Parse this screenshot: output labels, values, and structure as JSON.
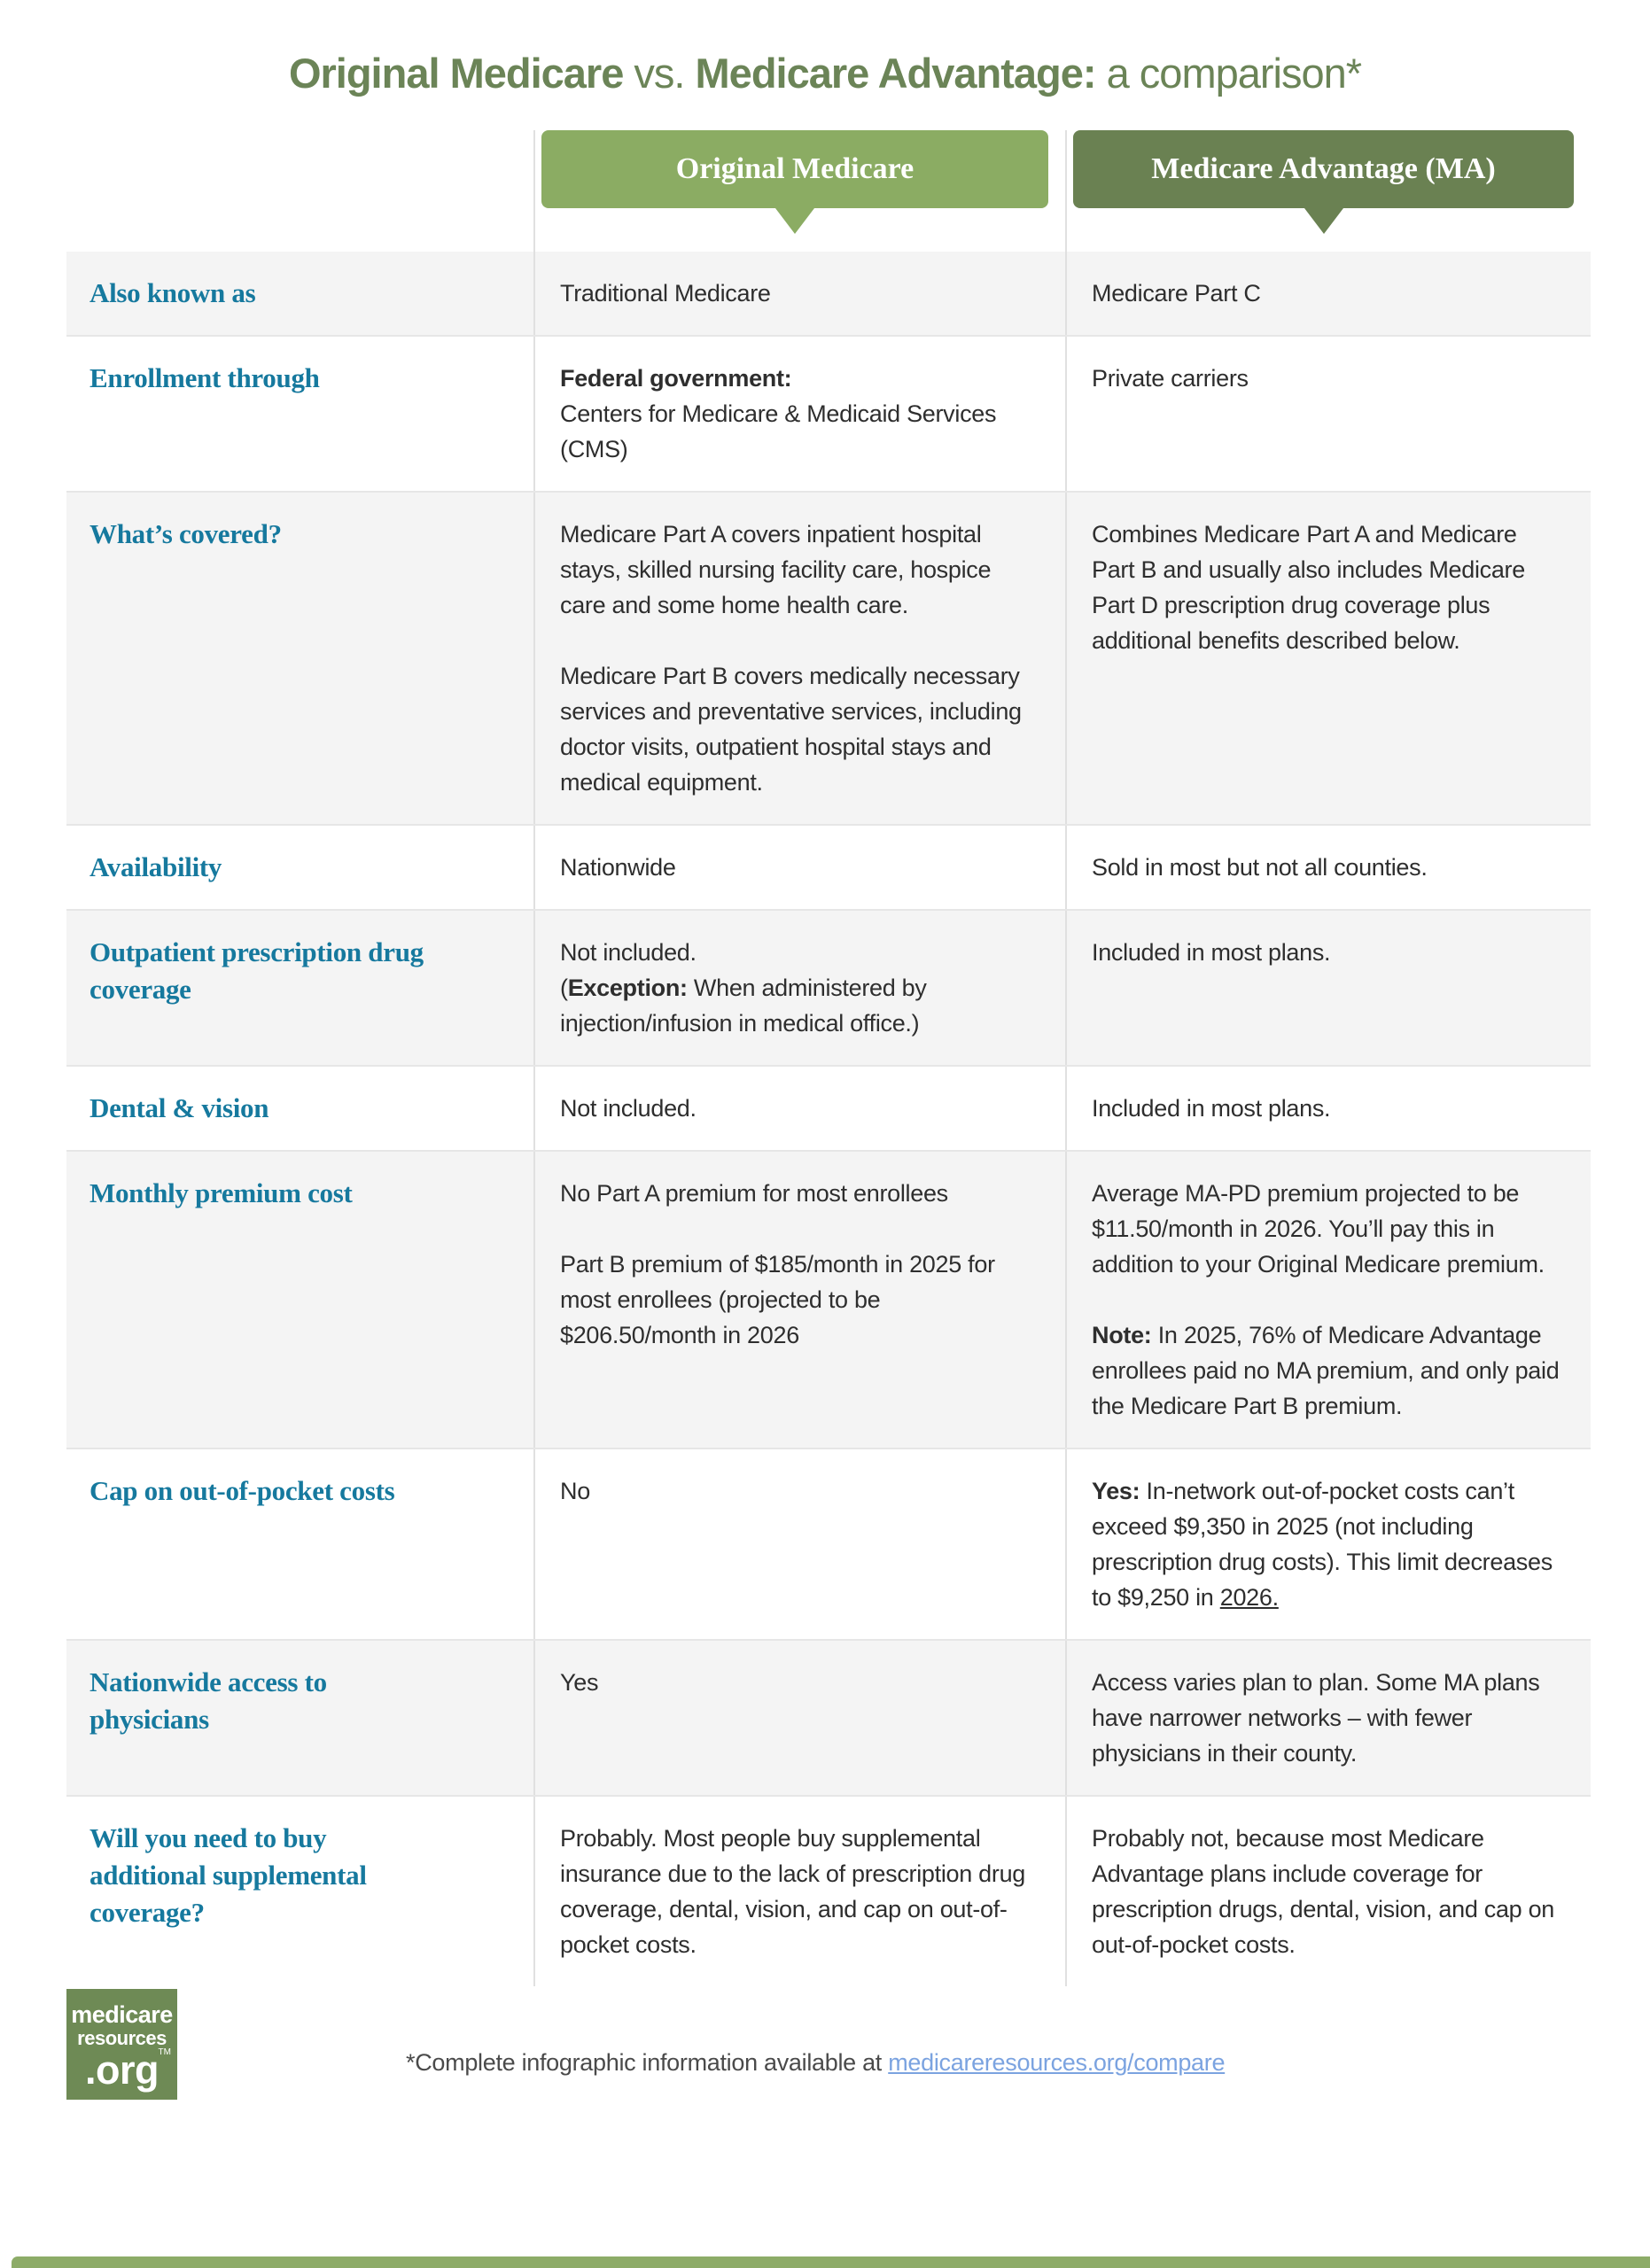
{
  "title": {
    "part1": "Original Medicare",
    "part2": " vs. ",
    "part3": "Medicare Advantage:",
    "part4": " a comparison*"
  },
  "columns": {
    "om": "Original Medicare",
    "ma": "Medicare Advantage (MA)"
  },
  "rows": [
    {
      "label": "Also known as",
      "shaded": true,
      "om": [
        [
          {
            "t": "Traditional Medicare"
          }
        ]
      ],
      "ma": [
        [
          {
            "t": "Medicare Part C"
          }
        ]
      ]
    },
    {
      "label": "Enrollment through",
      "shaded": false,
      "om": [
        [
          {
            "t": "Federal government:",
            "b": true
          },
          {
            "t": "\nCenters for Medicare & Medicaid Services (CMS)"
          }
        ]
      ],
      "ma": [
        [
          {
            "t": "Private carriers"
          }
        ]
      ]
    },
    {
      "label": "What’s covered?",
      "shaded": true,
      "om": [
        [
          {
            "t": "Medicare Part A covers inpatient hospital stays, skilled nursing facility care, hospice care and some home health care."
          }
        ],
        [
          {
            "t": "Medicare Part B covers medically necessary services and preventative services, including doctor visits, outpatient hospital stays and medical equipment."
          }
        ]
      ],
      "ma": [
        [
          {
            "t": "Combines Medicare Part A and Medicare Part B and usually also includes Medicare Part D prescription drug coverage plus additional benefits described below."
          }
        ]
      ]
    },
    {
      "label": "Availability",
      "shaded": false,
      "om": [
        [
          {
            "t": "Nationwide"
          }
        ]
      ],
      "ma": [
        [
          {
            "t": "Sold in most but not all counties."
          }
        ]
      ]
    },
    {
      "label": "Outpatient prescription drug coverage",
      "shaded": true,
      "om": [
        [
          {
            "t": "Not included.\n("
          },
          {
            "t": "Exception:",
            "b": true
          },
          {
            "t": " When administered by injection/infusion in medical office.)"
          }
        ]
      ],
      "ma": [
        [
          {
            "t": "Included in most plans."
          }
        ]
      ]
    },
    {
      "label": "Dental & vision",
      "shaded": false,
      "om": [
        [
          {
            "t": "Not included."
          }
        ]
      ],
      "ma": [
        [
          {
            "t": "Included in most plans."
          }
        ]
      ]
    },
    {
      "label": "Monthly premium cost",
      "shaded": true,
      "om": [
        [
          {
            "t": "No Part A premium for most enrollees"
          }
        ],
        [
          {
            "t": "Part B premium of  $185/month in 2025 for most enrollees  (projected to be $206.50/month in 2026"
          }
        ]
      ],
      "ma": [
        [
          {
            "t": "Average MA-PD premium projected to be $11.50/month in 2026. You’ll pay this in addition to your Original Medicare premium."
          }
        ],
        [
          {
            "t": "Note:",
            "b": true
          },
          {
            "t": " In 2025, 76% of Medicare Advantage enrollees paid no MA premium, and only paid the Medicare Part B premium."
          }
        ]
      ]
    },
    {
      "label": "Cap on out-of-pocket costs",
      "shaded": false,
      "om": [
        [
          {
            "t": "No"
          }
        ]
      ],
      "ma": [
        [
          {
            "t": "Yes:",
            "b": true
          },
          {
            "t": " In-network out-of-pocket costs can’t exceed $9,350 in 2025 (not including prescription drug costs). This limit decreases to $9,250 in "
          },
          {
            "t": "2026.",
            "u": true
          }
        ]
      ]
    },
    {
      "label": "Nationwide access to physicians",
      "shaded": true,
      "om": [
        [
          {
            "t": "Yes"
          }
        ]
      ],
      "ma": [
        [
          {
            "t": "Access varies plan to plan. Some MA plans have narrower networks – with fewer physicians in their county."
          }
        ]
      ]
    },
    {
      "label": "Will you need to buy additional supplemental coverage?",
      "shaded": false,
      "om": [
        [
          {
            "t": "Probably. Most people buy supplemental insurance due to the lack of prescription drug coverage, dental, vision, and cap on out-of-pocket costs."
          }
        ]
      ],
      "ma": [
        [
          {
            "t": "Probably not, because most Medicare Advantage plans include coverage for prescription drugs, dental, vision, and cap on out-of-pocket costs."
          }
        ]
      ]
    }
  ],
  "footer": {
    "logo_line1": "medicare",
    "logo_line2": "resources",
    "logo_line3": ".org",
    "logo_tm": "TM",
    "note_prefix": "*Complete infographic information available at ",
    "link_text": "medicareresources.org/compare"
  },
  "colors": {
    "title_green": "#6b8457",
    "pill_light_green": "#8bac63",
    "pill_dark_green": "#6a8152",
    "label_teal": "#16799e",
    "row_shade_gray": "#f4f4f4",
    "divider_gray": "#e0e0e0",
    "link_blue": "#7ba3e0",
    "logo_green": "#6e8a55",
    "bottom_bar_green": "#8dac68"
  }
}
